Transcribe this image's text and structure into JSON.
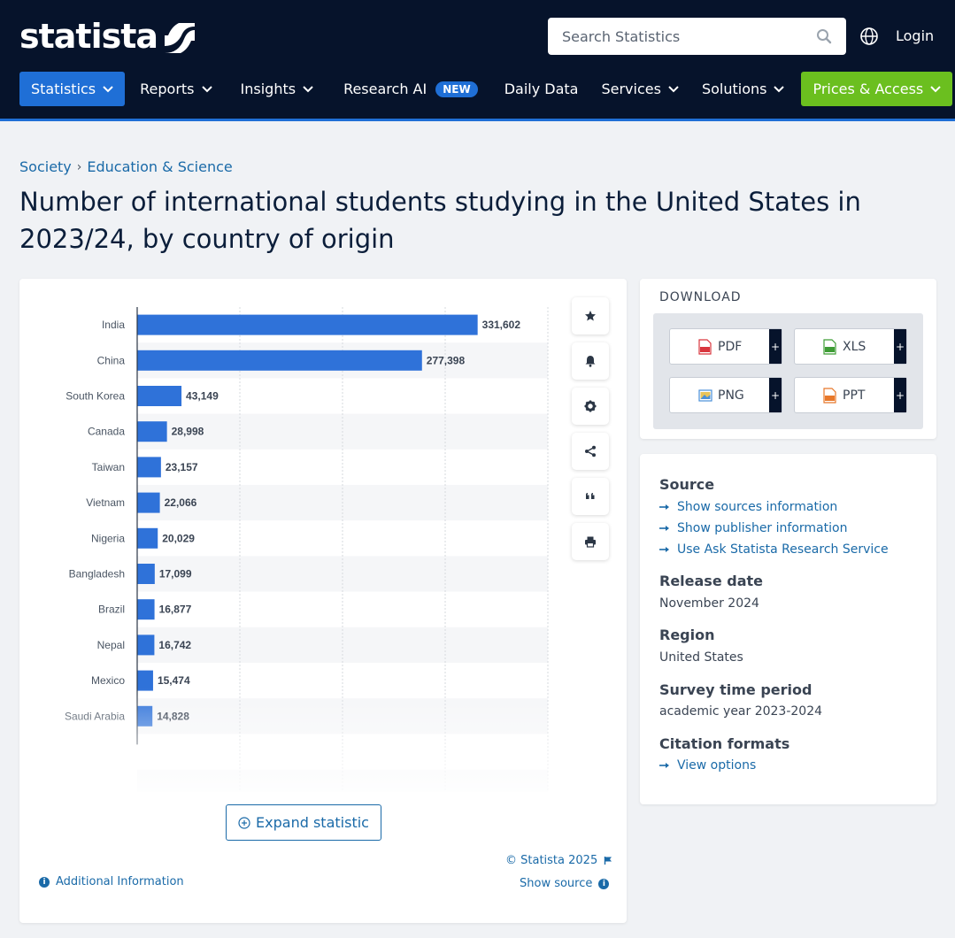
{
  "header": {
    "logo_text": "statista",
    "search_placeholder": "Search Statistics",
    "login_label": "Login",
    "nav": [
      {
        "label": "Statistics",
        "has_chevron": true
      },
      {
        "label": "Reports",
        "has_chevron": true
      },
      {
        "label": "Insights",
        "has_chevron": true
      },
      {
        "label": "Research AI",
        "badge": "NEW"
      },
      {
        "label": "Daily Data"
      },
      {
        "label": "Services",
        "has_chevron": true
      },
      {
        "label": "Solutions",
        "has_chevron": true
      },
      {
        "label": "Prices & Access",
        "has_chevron": true
      }
    ]
  },
  "breadcrumb": {
    "items": [
      "Society",
      "Education & Science"
    ],
    "separator": "›"
  },
  "page_title": "Number of international students studying in the United States in 2023/24, by country of origin",
  "chart_data": {
    "type": "bar",
    "orientation": "horizontal",
    "categories": [
      "India",
      "China",
      "South Korea",
      "Canada",
      "Taiwan",
      "Vietnam",
      "Nigeria",
      "Bangladesh",
      "Brazil",
      "Nepal",
      "Mexico",
      "Saudi Arabia"
    ],
    "values": [
      331602,
      277398,
      43149,
      28998,
      23157,
      22066,
      20029,
      17099,
      16877,
      16742,
      15474,
      14828
    ],
    "data_labels": [
      "331,602",
      "277,398",
      "43,149",
      "28,998",
      "23,157",
      "22,066",
      "20,029",
      "17,099",
      "16,877",
      "16,742",
      "15,474",
      "14,828"
    ],
    "xlim": [
      0,
      400000
    ],
    "grid": true,
    "bar_color": "#2f72d9",
    "fade_bottom": true
  },
  "chart_tools": [
    "star-icon",
    "bell-icon",
    "gear-icon",
    "share-icon",
    "quote-icon",
    "print-icon"
  ],
  "chart_footer": {
    "expand_label": "Expand statistic",
    "copyright": "© Statista 2025",
    "show_source": "Show source",
    "additional_info": "Additional Information"
  },
  "download": {
    "title": "DOWNLOAD",
    "buttons": [
      {
        "label": "PDF",
        "color": "#d9363e"
      },
      {
        "label": "XLS",
        "color": "#3e9c35"
      },
      {
        "label": "PNG",
        "color": "#4a90d9"
      },
      {
        "label": "PPT",
        "color": "#e8782a"
      }
    ],
    "plus": "+"
  },
  "info": {
    "source_heading": "Source",
    "source_links": [
      "Show sources information",
      "Show publisher information",
      "Use Ask Statista Research Service"
    ],
    "release_heading": "Release date",
    "release_value": "November 2024",
    "region_heading": "Region",
    "region_value": "United States",
    "survey_heading": "Survey time period",
    "survey_value": "academic year 2023-2024",
    "citation_heading": "Citation formats",
    "citation_link": "View options"
  },
  "colors": {
    "header_bg": "#06132b",
    "accent_blue": "#1f6fd6",
    "accent_green": "#6bbf1f",
    "link": "#1a6aa8"
  }
}
